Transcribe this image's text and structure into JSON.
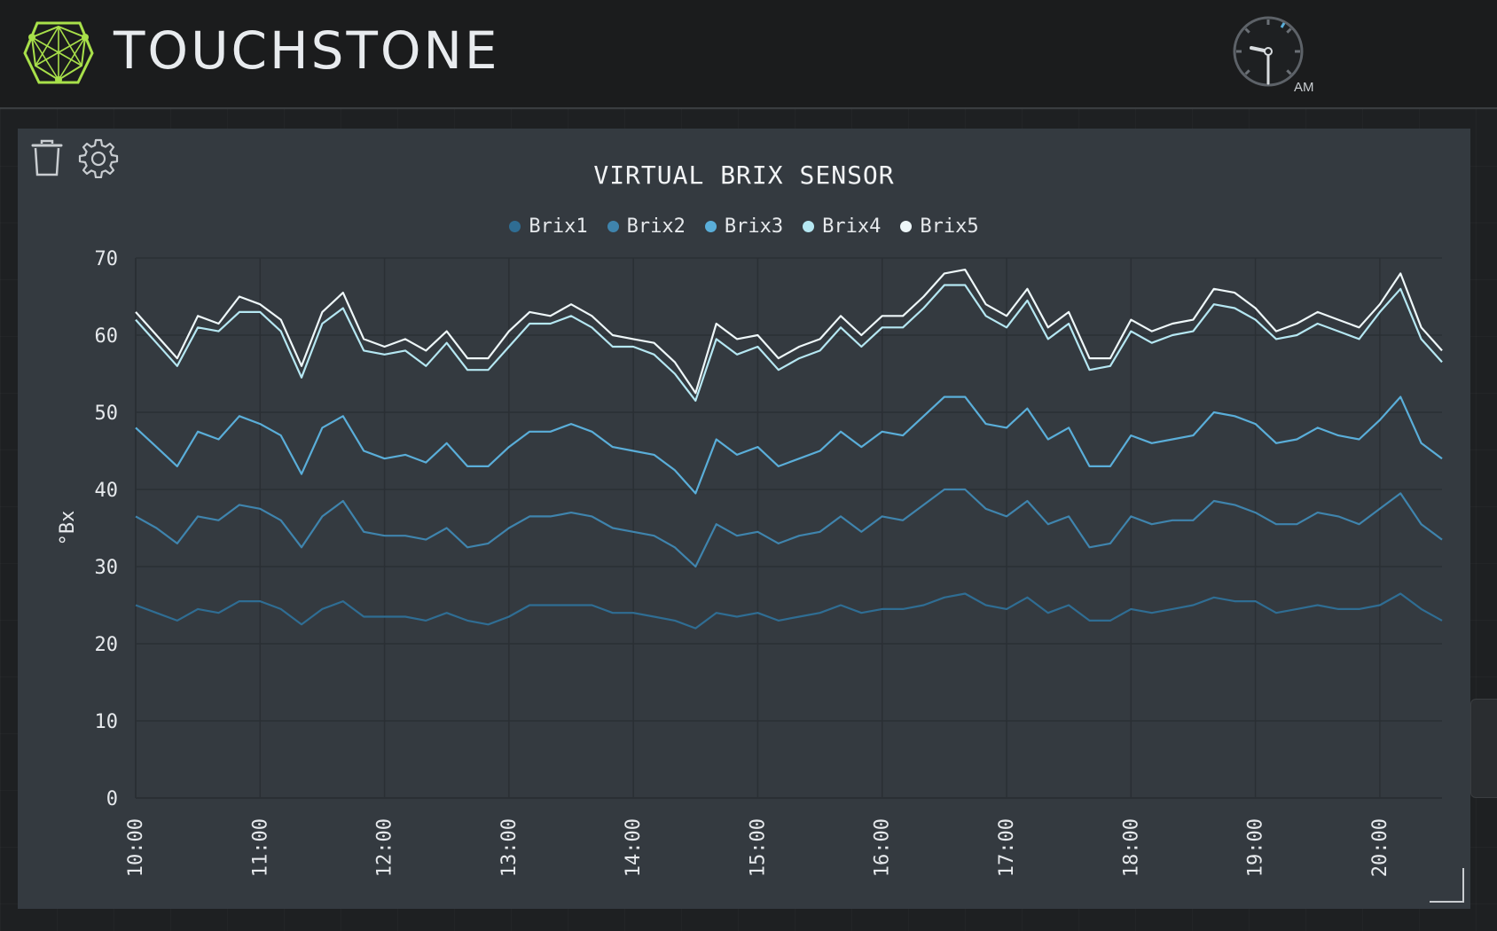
{
  "app": {
    "brand": "TOUCHSTONE",
    "clock_period": "AM"
  },
  "colors": {
    "accent": "#a8e04a",
    "panel": "#343a40",
    "series": [
      "#2f6d93",
      "#3f84ad",
      "#5aaed9",
      "#b5e7f2",
      "#eef7f9"
    ]
  },
  "icons": {
    "logo": "touchstone-logo-icon",
    "trash": "trash-icon",
    "settings": "gear-icon",
    "resize": "resize-handle-icon",
    "clock": "clock-icon"
  },
  "chart_data": {
    "type": "line",
    "title": "VIRTUAL BRIX SENSOR",
    "xlabel": "",
    "ylabel": "°Bx",
    "ylim": [
      0,
      70
    ],
    "yticks": [
      0,
      10,
      20,
      30,
      40,
      50,
      60,
      70
    ],
    "xticks": [
      "10:00",
      "11:00",
      "12:00",
      "13:00",
      "14:00",
      "15:00",
      "16:00",
      "17:00",
      "18:00",
      "19:00",
      "20:00"
    ],
    "x_start": "10:00",
    "x_step_minutes": 10,
    "grid": true,
    "legend_position": "top-center",
    "series": [
      {
        "name": "Brix1",
        "color": "#2f6d93",
        "values": [
          25,
          24,
          23,
          24.5,
          24,
          25.5,
          25.5,
          24.5,
          22.5,
          24.5,
          25.5,
          23.5,
          23.5,
          23.5,
          23,
          24,
          23,
          22.5,
          23.5,
          25,
          25,
          25,
          25,
          24,
          24,
          23.5,
          23,
          22,
          24,
          23.5,
          24,
          23,
          23.5,
          24,
          25,
          24,
          24.5,
          24.5,
          25,
          26,
          26.5,
          25,
          24.5,
          26,
          24,
          25,
          23,
          23,
          24.5,
          24,
          24.5,
          25,
          26,
          25.5,
          25.5,
          24,
          24.5,
          25,
          24.5,
          24.5,
          25,
          26.5,
          24.5,
          23
        ]
      },
      {
        "name": "Brix2",
        "color": "#3f84ad",
        "values": [
          36.5,
          35,
          33,
          36.5,
          36,
          38,
          37.5,
          36,
          32.5,
          36.5,
          38.5,
          34.5,
          34,
          34,
          33.5,
          35,
          32.5,
          33,
          35,
          36.5,
          36.5,
          37,
          36.5,
          35,
          34.5,
          34,
          32.5,
          30,
          35.5,
          34,
          34.5,
          33,
          34,
          34.5,
          36.5,
          34.5,
          36.5,
          36,
          38,
          40,
          40,
          37.5,
          36.5,
          38.5,
          35.5,
          36.5,
          32.5,
          33,
          36.5,
          35.5,
          36,
          36,
          38.5,
          38,
          37,
          35.5,
          35.5,
          37,
          36.5,
          35.5,
          37.5,
          39.5,
          35.5,
          33.5
        ]
      },
      {
        "name": "Brix3",
        "color": "#5aaed9",
        "values": [
          48,
          45.5,
          43,
          47.5,
          46.5,
          49.5,
          48.5,
          47,
          42,
          48,
          49.5,
          45,
          44,
          44.5,
          43.5,
          46,
          43,
          43,
          45.5,
          47.5,
          47.5,
          48.5,
          47.5,
          45.5,
          45,
          44.5,
          42.5,
          39.5,
          46.5,
          44.5,
          45.5,
          43,
          44,
          45,
          47.5,
          45.5,
          47.5,
          47,
          49.5,
          52,
          52,
          48.5,
          48,
          50.5,
          46.5,
          48,
          43,
          43,
          47,
          46,
          46.5,
          47,
          50,
          49.5,
          48.5,
          46,
          46.5,
          48,
          47,
          46.5,
          49,
          52,
          46,
          44
        ]
      },
      {
        "name": "Brix4",
        "color": "#b5e7f2",
        "values": [
          62,
          59,
          56,
          61,
          60.5,
          63,
          63,
          60.5,
          54.5,
          61.5,
          63.5,
          58,
          57.5,
          58,
          56,
          59,
          55.5,
          55.5,
          58.5,
          61.5,
          61.5,
          62.5,
          61,
          58.5,
          58.5,
          57.5,
          55,
          51.5,
          59.5,
          57.5,
          58.5,
          55.5,
          57,
          58,
          61,
          58.5,
          61,
          61,
          63.5,
          66.5,
          66.5,
          62.5,
          61,
          64.5,
          59.5,
          61.5,
          55.5,
          56,
          60.5,
          59,
          60,
          60.5,
          64,
          63.5,
          62,
          59.5,
          60,
          61.5,
          60.5,
          59.5,
          63,
          66,
          59.5,
          56.5
        ]
      },
      {
        "name": "Brix5",
        "color": "#eef7f9",
        "values": [
          63,
          60,
          57,
          62.5,
          61.5,
          65,
          64,
          62,
          56,
          63,
          65.5,
          59.5,
          58.5,
          59.5,
          58,
          60.5,
          57,
          57,
          60.5,
          63,
          62.5,
          64,
          62.5,
          60,
          59.5,
          59,
          56.5,
          52.5,
          61.5,
          59.5,
          60,
          57,
          58.5,
          59.5,
          62.5,
          60,
          62.5,
          62.5,
          65,
          68,
          68.5,
          64,
          62.5,
          66,
          61,
          63,
          57,
          57,
          62,
          60.5,
          61.5,
          62,
          66,
          65.5,
          63.5,
          60.5,
          61.5,
          63,
          62,
          61,
          64,
          68,
          61,
          58
        ]
      }
    ]
  }
}
